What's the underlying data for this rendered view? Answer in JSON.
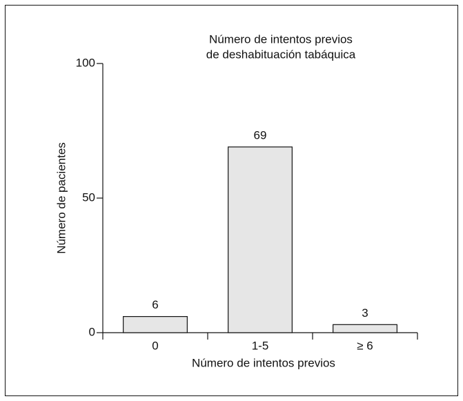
{
  "chart_data": {
    "type": "bar",
    "title": [
      "Número de intentos previos",
      "de deshabituación tabáquica"
    ],
    "x_label": "Número de intentos previos",
    "y_label": "Número de pacientes",
    "categories": [
      "0",
      "1-5",
      "≥ 6"
    ],
    "values": [
      6,
      69,
      3
    ],
    "color": "#e6e6e6",
    "ylim": [
      0,
      100
    ],
    "yticks": [
      0,
      50,
      100
    ]
  }
}
